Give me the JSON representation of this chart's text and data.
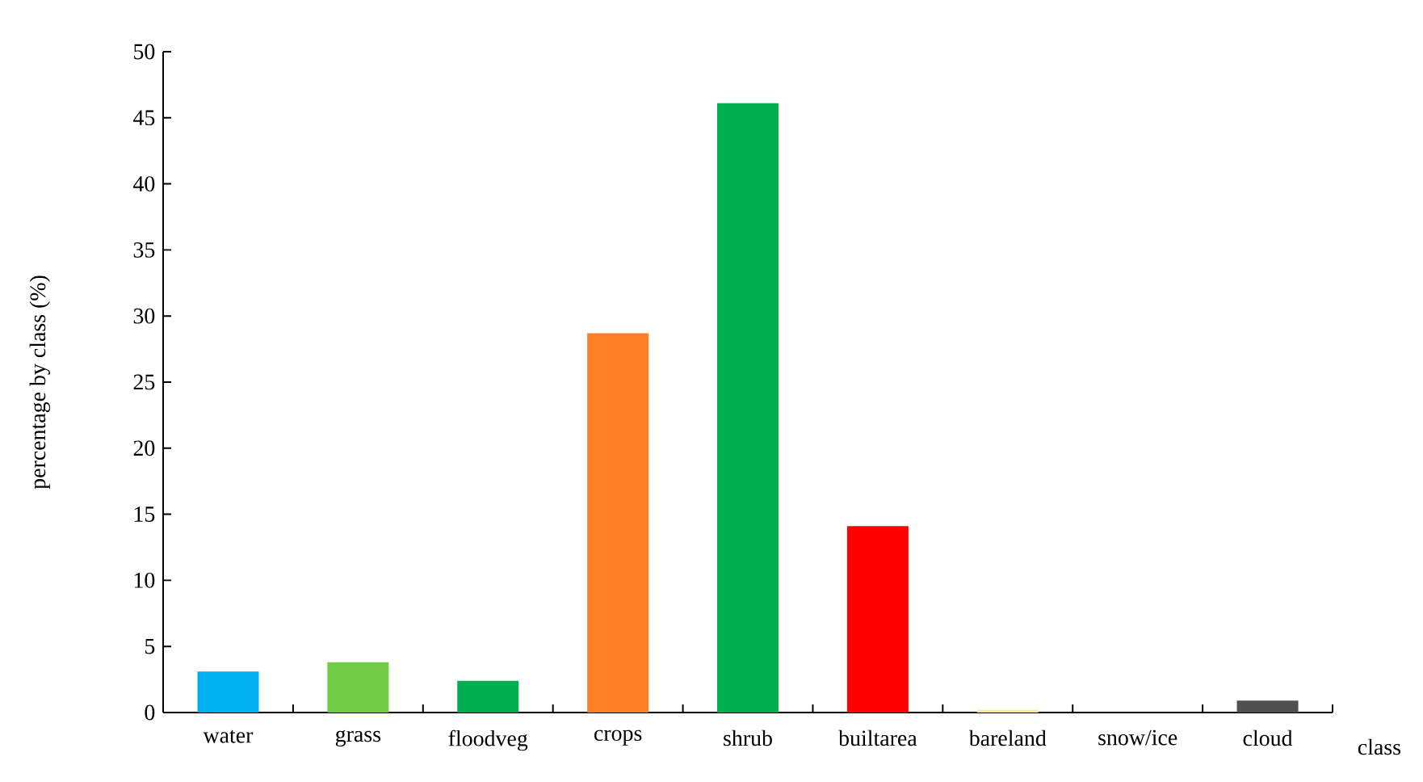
{
  "chart_data": {
    "type": "bar",
    "xlabel": "class",
    "ylabel": "percentage by class (%)",
    "categories": [
      "water",
      "grass",
      "floodveg",
      "crops",
      "shrub",
      "builtarea",
      "bareland",
      "snow/ice",
      "cloud"
    ],
    "values": [
      3.1,
      3.8,
      2.4,
      28.7,
      46.1,
      14.1,
      0.2,
      0,
      0.9
    ],
    "colors": [
      "#00b0f0",
      "#70cc44",
      "#00b050",
      "#ff7f27",
      "#00b050",
      "#ff0000",
      "#ffe699",
      "#bfbfbf",
      "#505050"
    ],
    "ylim": [
      0,
      50
    ],
    "yticks": [
      0,
      5,
      10,
      15,
      20,
      25,
      30,
      35,
      40,
      45,
      50
    ],
    "grid": false
  }
}
